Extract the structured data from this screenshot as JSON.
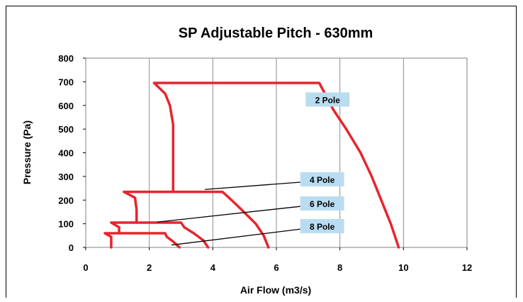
{
  "chart_data": {
    "type": "line",
    "title": "SP Adjustable Pitch - 630mm",
    "xlabel": "Air Flow (m3/s)",
    "ylabel": "Pressure (Pa)",
    "xlim": [
      0,
      12
    ],
    "ylim": [
      0,
      800
    ],
    "xticks": [
      0,
      2,
      4,
      6,
      8,
      10,
      12
    ],
    "yticks": [
      0,
      100,
      200,
      300,
      400,
      500,
      600,
      700,
      800
    ],
    "grid": {
      "x": true,
      "y": false
    },
    "line_color": "#e8242c",
    "label_box_color": "#b9dcf0",
    "series": [
      {
        "name": "2 Pole",
        "points": [
          [
            9.85,
            0
          ],
          [
            9.6,
            100
          ],
          [
            9.3,
            200
          ],
          [
            9.0,
            300
          ],
          [
            8.65,
            400
          ],
          [
            8.2,
            500
          ],
          [
            7.8,
            580
          ],
          [
            7.35,
            695
          ],
          [
            2.15,
            695
          ],
          [
            2.5,
            650
          ],
          [
            2.65,
            600
          ],
          [
            2.75,
            520
          ],
          [
            2.75,
            235
          ]
        ]
      },
      {
        "name": "4 Pole",
        "points": [
          [
            5.75,
            0
          ],
          [
            5.6,
            50
          ],
          [
            5.35,
            100
          ],
          [
            4.9,
            160
          ],
          [
            4.55,
            205
          ],
          [
            4.3,
            235
          ],
          [
            1.2,
            235
          ],
          [
            1.55,
            210
          ],
          [
            1.6,
            160
          ],
          [
            1.6,
            105
          ]
        ]
      },
      {
        "name": "6 Pole",
        "points": [
          [
            3.85,
            0
          ],
          [
            3.7,
            30
          ],
          [
            3.4,
            60
          ],
          [
            3.1,
            85
          ],
          [
            3.0,
            105
          ],
          [
            0.8,
            105
          ],
          [
            1.05,
            85
          ],
          [
            1.05,
            60
          ]
        ]
      },
      {
        "name": "8 Pole",
        "points": [
          [
            2.95,
            0
          ],
          [
            2.75,
            25
          ],
          [
            2.55,
            45
          ],
          [
            2.5,
            60
          ],
          [
            0.6,
            60
          ],
          [
            0.8,
            45
          ],
          [
            0.8,
            0
          ]
        ]
      }
    ],
    "annotations": [
      {
        "text": "2 Pole",
        "box_at": [
          6.92,
          625
        ]
      },
      {
        "text": "4 Pole",
        "box_at": [
          6.75,
          288
        ],
        "line_to": [
          3.75,
          245
        ]
      },
      {
        "text": "6 Pole",
        "box_at": [
          6.75,
          186
        ],
        "line_to": [
          2.25,
          107
        ]
      },
      {
        "text": "8 Pole",
        "box_at": [
          6.75,
          90
        ],
        "line_to": [
          2.7,
          10
        ]
      }
    ]
  }
}
